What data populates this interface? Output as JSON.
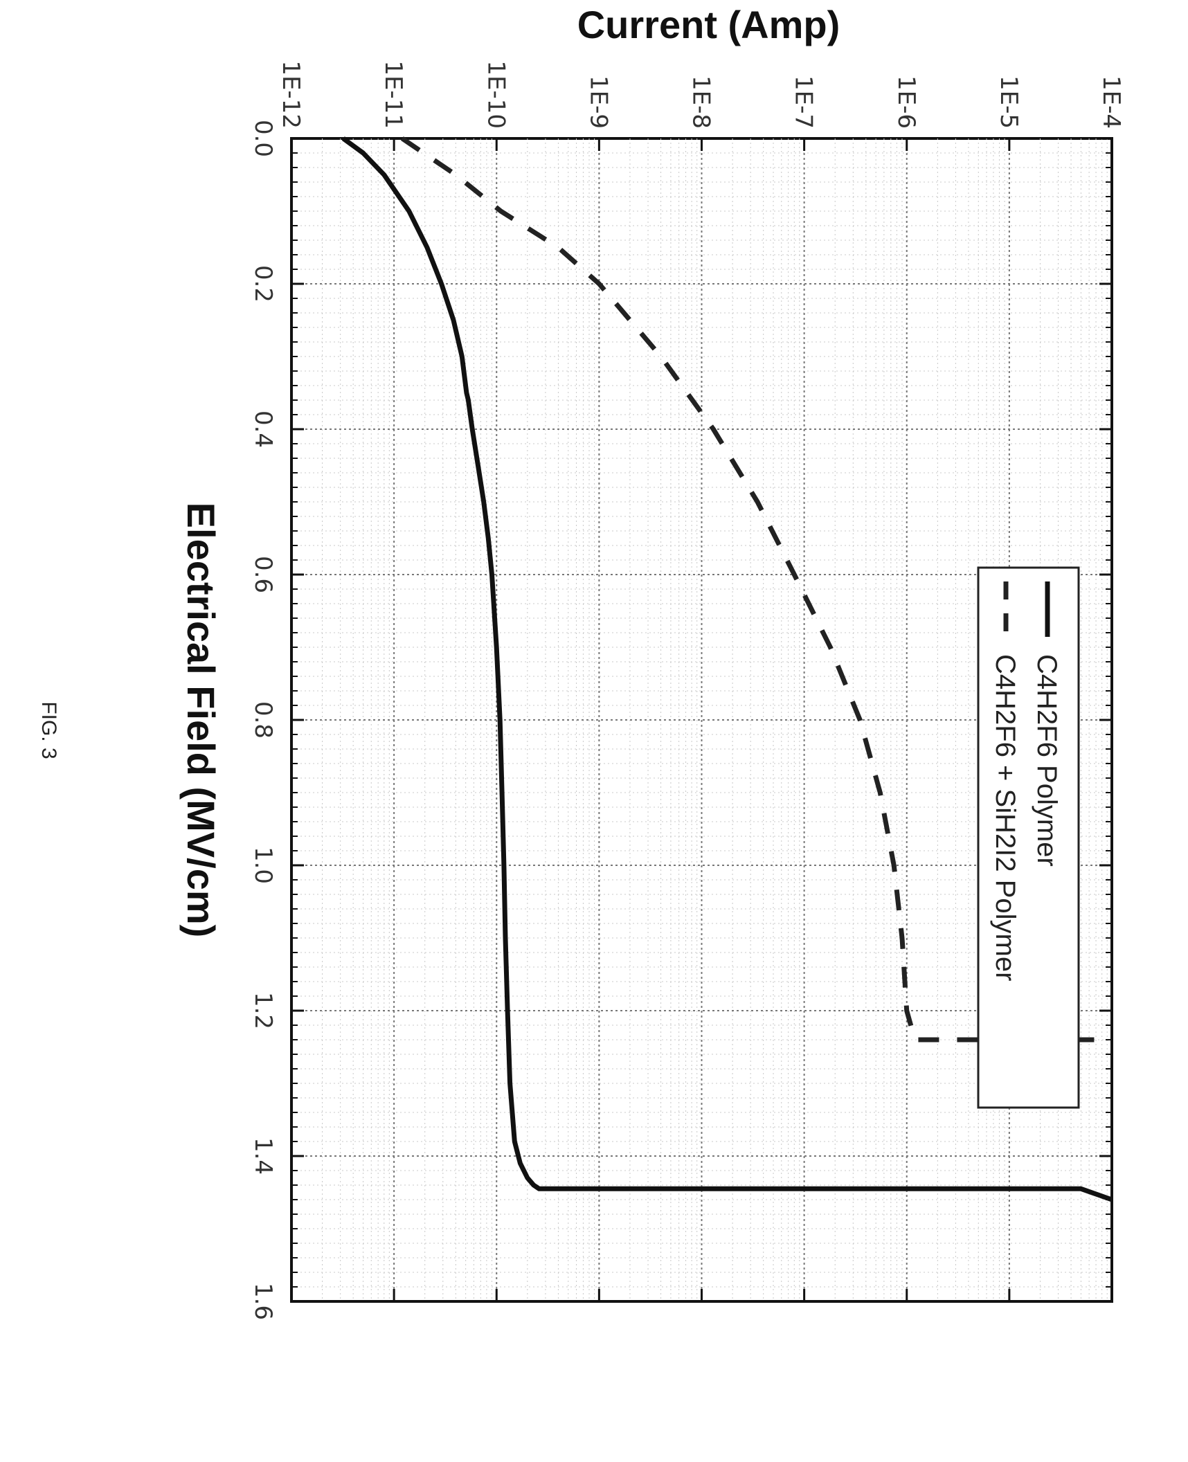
{
  "figure_caption": "FIG. 3",
  "chart_data": {
    "type": "line",
    "title": "",
    "xlabel": "Electrical Field (MV/cm)",
    "ylabel": "Current (Amp)",
    "xlim": [
      0.0,
      1.6
    ],
    "ylim_exp": [
      -12,
      -4
    ],
    "y_scale": "log",
    "x_ticks": [
      "0.0",
      "0.2",
      "0.4",
      "0.6",
      "0.8",
      "1.0",
      "1.2",
      "1.4",
      "1.6"
    ],
    "y_ticks": [
      "1E-12",
      "1E-11",
      "1E-10",
      "1E-9",
      "1E-8",
      "1E-7",
      "1E-6",
      "1E-5",
      "1E-4"
    ],
    "grid": true,
    "legend_position": "top-left",
    "series": [
      {
        "name": "C4H2F6 Polymer",
        "style": "solid",
        "color": "#111111",
        "x": [
          0.0,
          0.02,
          0.05,
          0.1,
          0.15,
          0.2,
          0.25,
          0.3,
          0.35,
          0.36,
          0.4,
          0.45,
          0.5,
          0.55,
          0.6,
          0.7,
          0.8,
          0.9,
          1.0,
          1.1,
          1.2,
          1.3,
          1.38,
          1.41,
          1.43,
          1.44,
          1.445,
          1.445,
          1.46
        ],
        "y": [
          "3.2e-12",
          "5.0e-12",
          "8.0e-12",
          "1.4e-11",
          "2.1e-11",
          "2.9e-11",
          "3.8e-11",
          "4.6e-11",
          "5.1e-11",
          "5.3e-11",
          "5.8e-11",
          "6.6e-11",
          "7.5e-11",
          "8.3e-11",
          "9.0e-11",
          "1.0e-10",
          "1.08e-10",
          "1.13e-10",
          "1.18e-10",
          "1.22e-10",
          "1.28e-10",
          "1.35e-10",
          "1.5e-10",
          "1.7e-10",
          "2.0e-10",
          "2.3e-10",
          "2.6e-10",
          "5.0e-5",
          "1.0e-4"
        ]
      },
      {
        "name": "C4H2F6 + SiH2I2 Polymer",
        "style": "dashed",
        "color": "#222222",
        "x": [
          0.0,
          0.05,
          0.1,
          0.15,
          0.2,
          0.3,
          0.4,
          0.5,
          0.6,
          0.7,
          0.8,
          0.9,
          1.0,
          1.1,
          1.2,
          1.24,
          1.24
        ],
        "y": [
          "1.2e-11",
          "4.0e-11",
          "1.1e-10",
          "4.0e-10",
          "1.0e-9",
          "4.0e-9",
          "1.3e-8",
          "3.5e-8",
          "8.0e-8",
          "1.8e-7",
          "3.5e-7",
          "5.5e-7",
          "7.5e-7",
          "9.0e-7",
          "1.0e-6",
          "1.2e-6",
          "1.0e-4"
        ]
      }
    ]
  }
}
